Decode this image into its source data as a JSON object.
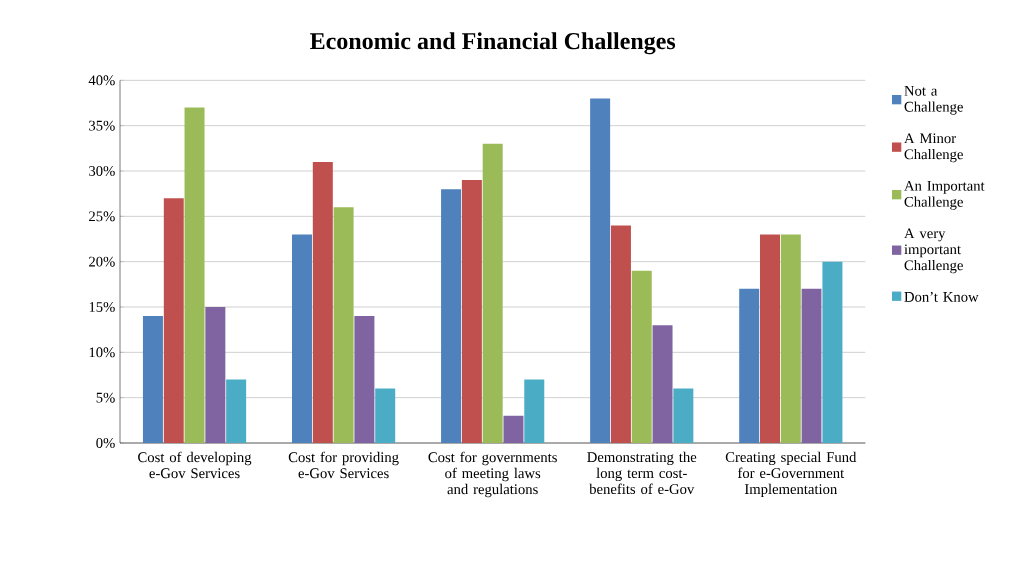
{
  "chart_data": {
    "type": "bar",
    "title": "Economic and Financial Challenges",
    "categories": [
      "Cost of developing e-Gov Services",
      "Cost for providing e-Gov Services",
      "Cost for governments of meeting laws and regulations",
      "Demonstrating the long term cost-benefits of e-Gov",
      "Creating special Fund for e-Government Implementation"
    ],
    "series": [
      {
        "name": "Not a Challenge",
        "color": "#4f81bd",
        "values": [
          14,
          23,
          28,
          38,
          17
        ]
      },
      {
        "name": "A Minor Challenge",
        "color": "#c0504d",
        "values": [
          27,
          31,
          29,
          24,
          23
        ]
      },
      {
        "name": "An Important Challenge",
        "color": "#9bbb59",
        "values": [
          37,
          26,
          33,
          19,
          23
        ]
      },
      {
        "name": "A very important Challenge",
        "color": "#8064a2",
        "values": [
          15,
          14,
          3,
          13,
          17
        ]
      },
      {
        "name": "Don’t Know",
        "color": "#4bacc6",
        "values": [
          7,
          6,
          7,
          6,
          20
        ]
      }
    ],
    "ylim": [
      0,
      40
    ],
    "yticks": [
      {
        "value": 0,
        "label": "0%"
      },
      {
        "value": 5,
        "label": "5%"
      },
      {
        "value": 10,
        "label": "10%"
      },
      {
        "value": 15,
        "label": "15%"
      },
      {
        "value": 20,
        "label": "20%"
      },
      {
        "value": 25,
        "label": "25%"
      },
      {
        "value": 30,
        "label": "30%"
      },
      {
        "value": 35,
        "label": "35%"
      },
      {
        "value": 40,
        "label": "40%"
      }
    ],
    "grid": "y",
    "legend": "right"
  }
}
